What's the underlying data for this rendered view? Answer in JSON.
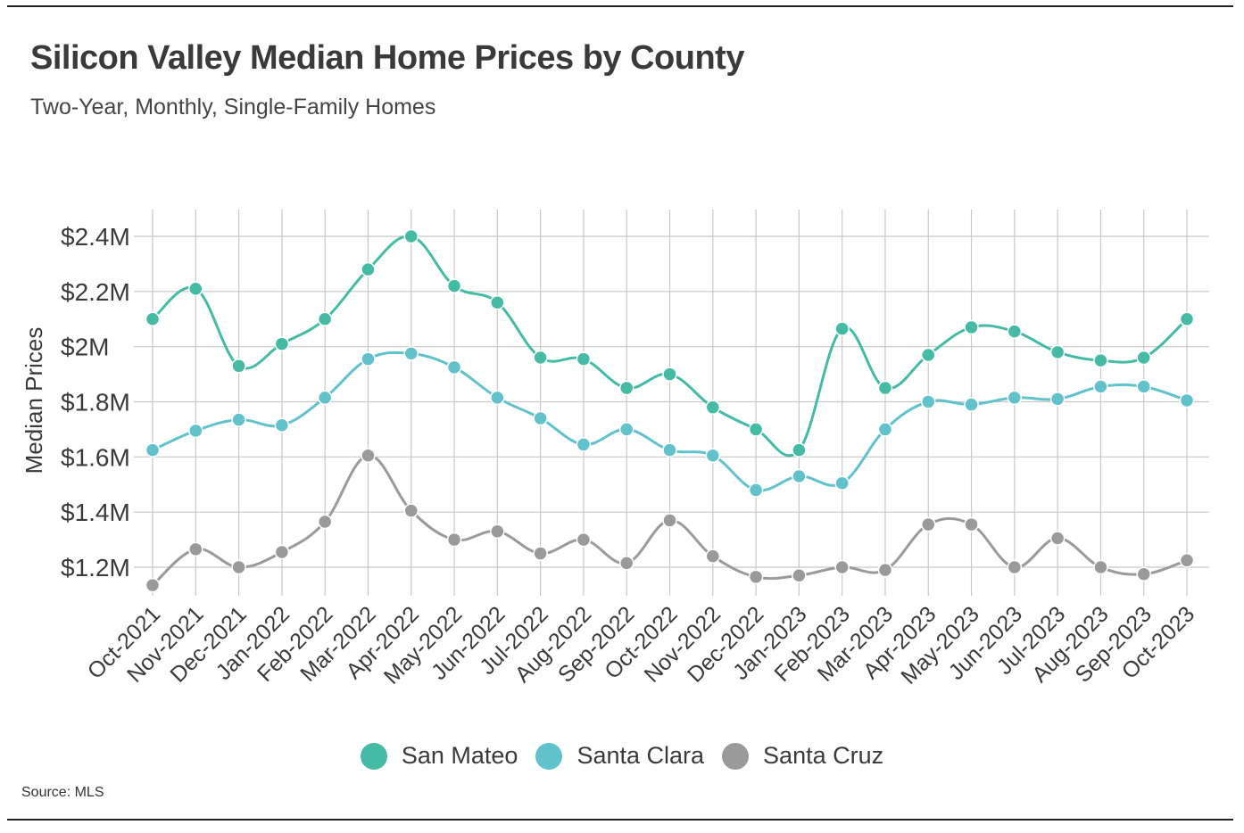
{
  "title": "Silicon Valley Median Home Prices by County",
  "subtitle": "Two-Year, Monthly, Single-Family Homes",
  "source": "Source:  MLS",
  "chart_data": {
    "type": "line",
    "title": "Silicon Valley Median Home Prices by County",
    "subtitle": "Two-Year, Monthly, Single-Family Homes",
    "xlabel": "",
    "ylabel": "Median Prices",
    "ylim": [
      1.1,
      2.45
    ],
    "yticks": [
      1.2,
      1.4,
      1.6,
      1.8,
      2.0,
      2.2,
      2.4
    ],
    "ytick_labels": [
      "$1.2M",
      "$1.4M",
      "$1.6M",
      "$1.8M",
      "$2M",
      "$2.2M",
      "$2.4M"
    ],
    "grid": true,
    "legend_position": "bottom-center",
    "categories": [
      "Oct-2021",
      "Nov-2021",
      "Dec-2021",
      "Jan-2022",
      "Feb-2022",
      "Mar-2022",
      "Apr-2022",
      "May-2022",
      "Jun-2022",
      "Jul-2022",
      "Aug-2022",
      "Sep-2022",
      "Oct-2022",
      "Nov-2022",
      "Dec-2022",
      "Jan-2023",
      "Feb-2023",
      "Mar-2023",
      "Apr-2023",
      "May-2023",
      "Jun-2023",
      "Jul-2023",
      "Aug-2023",
      "Sep-2023",
      "Oct-2023"
    ],
    "series": [
      {
        "name": "San Mateo",
        "color": "#45bba5",
        "values": [
          2.1,
          2.21,
          1.93,
          2.01,
          2.1,
          2.28,
          2.4,
          2.22,
          2.16,
          1.96,
          1.955,
          1.85,
          1.9,
          1.78,
          1.7,
          1.625,
          2.065,
          1.85,
          1.97,
          2.07,
          2.055,
          1.98,
          1.95,
          1.96,
          2.1
        ]
      },
      {
        "name": "Santa Clara",
        "color": "#62c2cc",
        "values": [
          1.625,
          1.695,
          1.735,
          1.715,
          1.815,
          1.955,
          1.975,
          1.925,
          1.815,
          1.74,
          1.645,
          1.7,
          1.625,
          1.605,
          1.48,
          1.53,
          1.505,
          1.7,
          1.8,
          1.79,
          1.815,
          1.81,
          1.855,
          1.855,
          1.805
        ]
      },
      {
        "name": "Santa Cruz",
        "color": "#9a9a9a",
        "values": [
          1.135,
          1.265,
          1.2,
          1.255,
          1.365,
          1.605,
          1.405,
          1.3,
          1.33,
          1.25,
          1.3,
          1.215,
          1.37,
          1.24,
          1.165,
          1.17,
          1.2,
          1.19,
          1.355,
          1.355,
          1.2,
          1.305,
          1.2,
          1.175,
          1.225
        ]
      }
    ]
  }
}
